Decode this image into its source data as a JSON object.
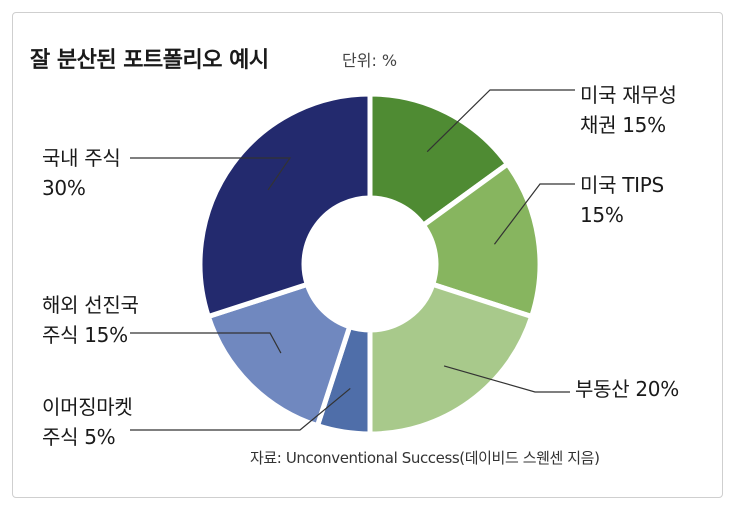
{
  "chart_data": {
    "type": "pie",
    "donut": true,
    "title": "잘 분산된 포트폴리오 예시",
    "unit_label": "단위: %",
    "source": "자료: Unconventional Success(데이비드 스웬센 지음)",
    "slices": [
      {
        "label_line1": "미국 재무성",
        "label_line2": "채권 15%",
        "value": 15,
        "color": "#4f8b33"
      },
      {
        "label_line1": "미국 TIPS",
        "label_line2": "15%",
        "value": 15,
        "color": "#87b55f"
      },
      {
        "label_line1": "부동산 20%",
        "label_line2": "",
        "value": 20,
        "color": "#a8c98b"
      },
      {
        "label_line1": "이머징마켓",
        "label_line2": "주식 5%",
        "value": 5,
        "color": "#4f6ea9"
      },
      {
        "label_line1": "해외 선진국",
        "label_line2": "주식 15%",
        "value": 15,
        "color": "#7088bf"
      },
      {
        "label_line1": "국내 주식",
        "label_line2": "30%",
        "value": 30,
        "color": "#232a6e"
      }
    ]
  }
}
